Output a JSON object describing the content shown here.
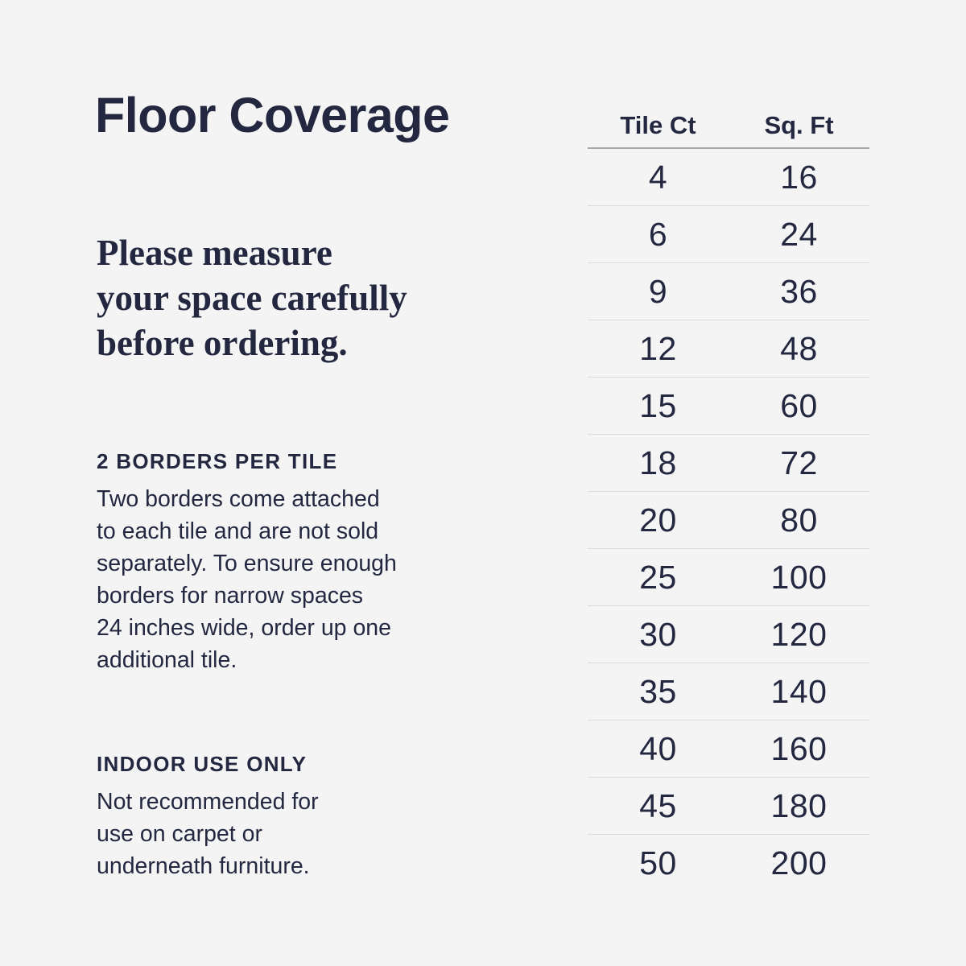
{
  "page": {
    "background_color": "#f4f4f5",
    "text_color": "#232840",
    "divider_color_header": "#a6a6a8",
    "divider_color_row": "#dcdcde"
  },
  "header": {
    "title": "Floor Coverage"
  },
  "intro": {
    "text": "Please measure\nyour space carefully\nbefore ordering."
  },
  "sections": [
    {
      "heading": "2 BORDERS PER TILE",
      "body": "Two borders come attached\nto each tile and are not sold\nseparately. To ensure enough\nborders for narrow spaces\n24 inches wide, order up one\nadditional tile."
    },
    {
      "heading": "INDOOR USE ONLY",
      "body": "Not recommended for\nuse on carpet or\nunderneath furniture."
    }
  ],
  "table": {
    "type": "table",
    "columns": [
      "Tile Ct",
      "Sq. Ft"
    ],
    "rows": [
      [
        4,
        16
      ],
      [
        6,
        24
      ],
      [
        9,
        36
      ],
      [
        12,
        48
      ],
      [
        15,
        60
      ],
      [
        18,
        72
      ],
      [
        20,
        80
      ],
      [
        25,
        100
      ],
      [
        30,
        120
      ],
      [
        35,
        140
      ],
      [
        40,
        160
      ],
      [
        45,
        180
      ],
      [
        50,
        200
      ]
    ]
  }
}
